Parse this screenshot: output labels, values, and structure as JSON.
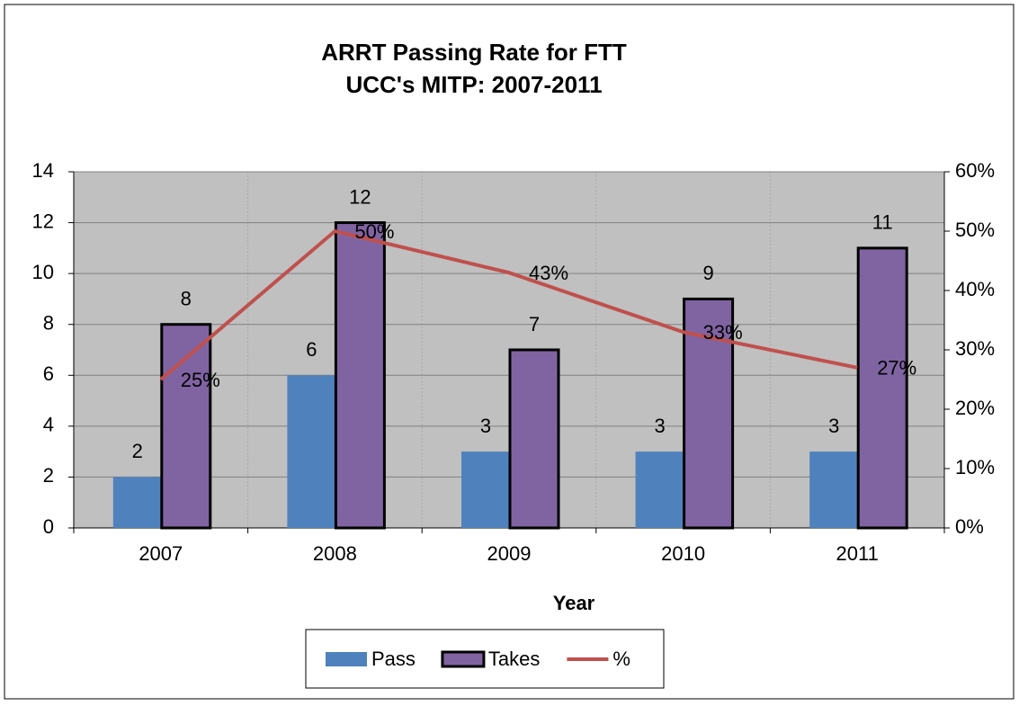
{
  "chart_data": {
    "type": "bar",
    "title": "ARRT Passing Rate for FTT",
    "subtitle": "UCC's MITP: 2007-2011",
    "x_label": "Year",
    "categories": [
      "2007",
      "2008",
      "2009",
      "2010",
      "2011"
    ],
    "series": [
      {
        "name": "Pass",
        "color": "#4f81bd",
        "values": [
          2,
          6,
          3,
          3,
          3
        ]
      },
      {
        "name": "Takes",
        "color": "#8064a2",
        "values": [
          8,
          12,
          7,
          9,
          11
        ]
      },
      {
        "name": "%",
        "color": "#c0504d",
        "type": "line",
        "axis": "y2",
        "values": [
          25,
          50,
          43,
          33,
          27
        ],
        "value_labels": [
          "25%",
          "50%",
          "43%",
          "33%",
          "27%"
        ]
      }
    ],
    "ylim": [
      0,
      14
    ],
    "yticks": [
      0,
      2,
      4,
      6,
      8,
      10,
      12,
      14
    ],
    "y2lim": [
      0,
      60
    ],
    "y2ticks": [
      {
        "value": 0,
        "label": "0%"
      },
      {
        "value": 10,
        "label": "10%"
      },
      {
        "value": 20,
        "label": "20%"
      },
      {
        "value": 30,
        "label": "30%"
      },
      {
        "value": 40,
        "label": "40%"
      },
      {
        "value": 50,
        "label": "50%"
      },
      {
        "value": 60,
        "label": "60%"
      }
    ],
    "grid": true,
    "legend": "bottom"
  }
}
